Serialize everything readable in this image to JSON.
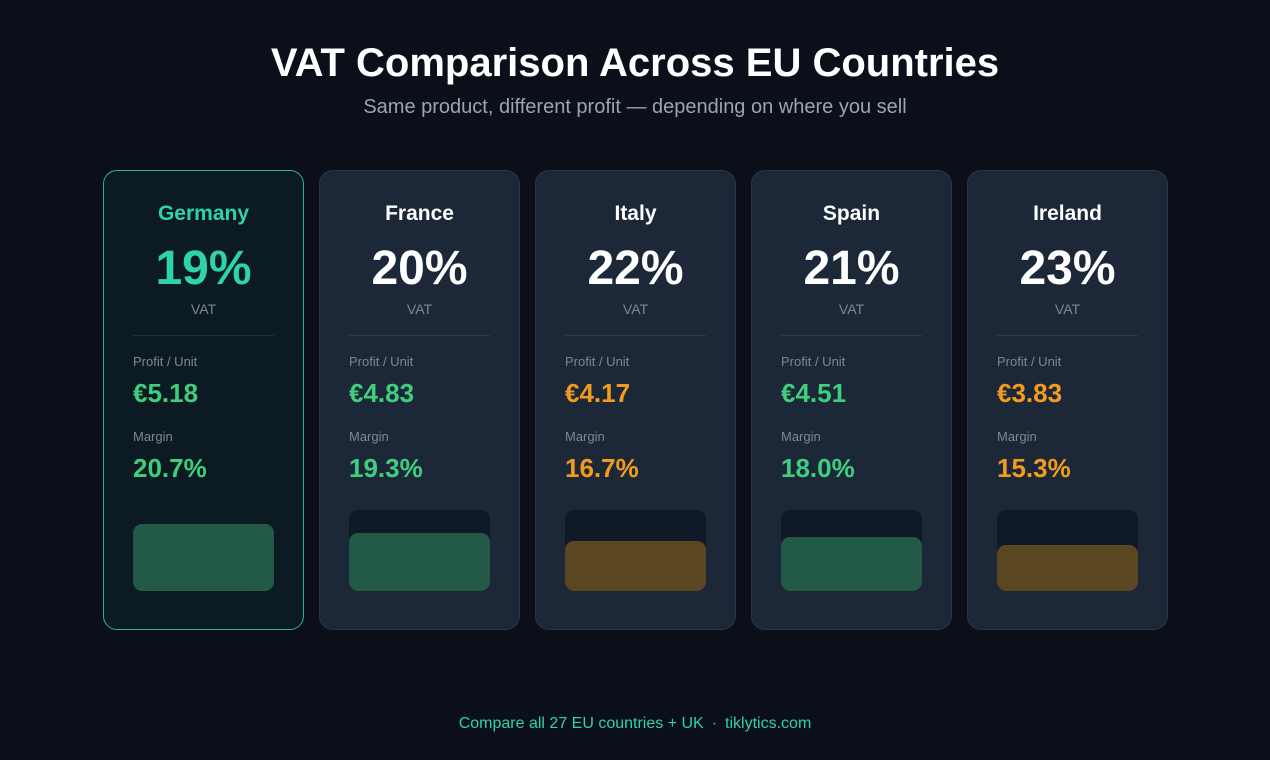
{
  "header": {
    "title": "VAT Comparison Across EU Countries",
    "subtitle": "Same product, different profit — depending on where you sell"
  },
  "labels": {
    "vat": "VAT",
    "profit_per_unit": "Profit / Unit",
    "margin": "Margin"
  },
  "colors": {
    "highlight": "#2dd4a8",
    "good": "#3ecf7e",
    "warn": "#f19c1a"
  },
  "chart_data": {
    "type": "bar",
    "title": "VAT Comparison Across EU Countries",
    "categories": [
      "Germany",
      "France",
      "Italy",
      "Spain",
      "Ireland"
    ],
    "series": [
      {
        "name": "VAT",
        "values": [
          "19%",
          "20%",
          "22%",
          "21%",
          "23%"
        ]
      },
      {
        "name": "Profit / Unit",
        "values": [
          "€5.18",
          "€4.83",
          "€4.17",
          "€4.51",
          "€3.83"
        ]
      },
      {
        "name": "Margin",
        "values": [
          "20.7%",
          "19.3%",
          "16.7%",
          "18.0%",
          "15.3%"
        ]
      }
    ],
    "margin_numeric": [
      20.7,
      19.3,
      16.7,
      18.0,
      15.3
    ],
    "bar_scale_max": 20.7,
    "status": [
      "good",
      "good",
      "warn",
      "good",
      "warn"
    ],
    "highlighted": "Germany"
  },
  "footer": {
    "cta": "Compare all 27 EU countries + UK",
    "separator": "·",
    "site": "tiklytics.com"
  }
}
